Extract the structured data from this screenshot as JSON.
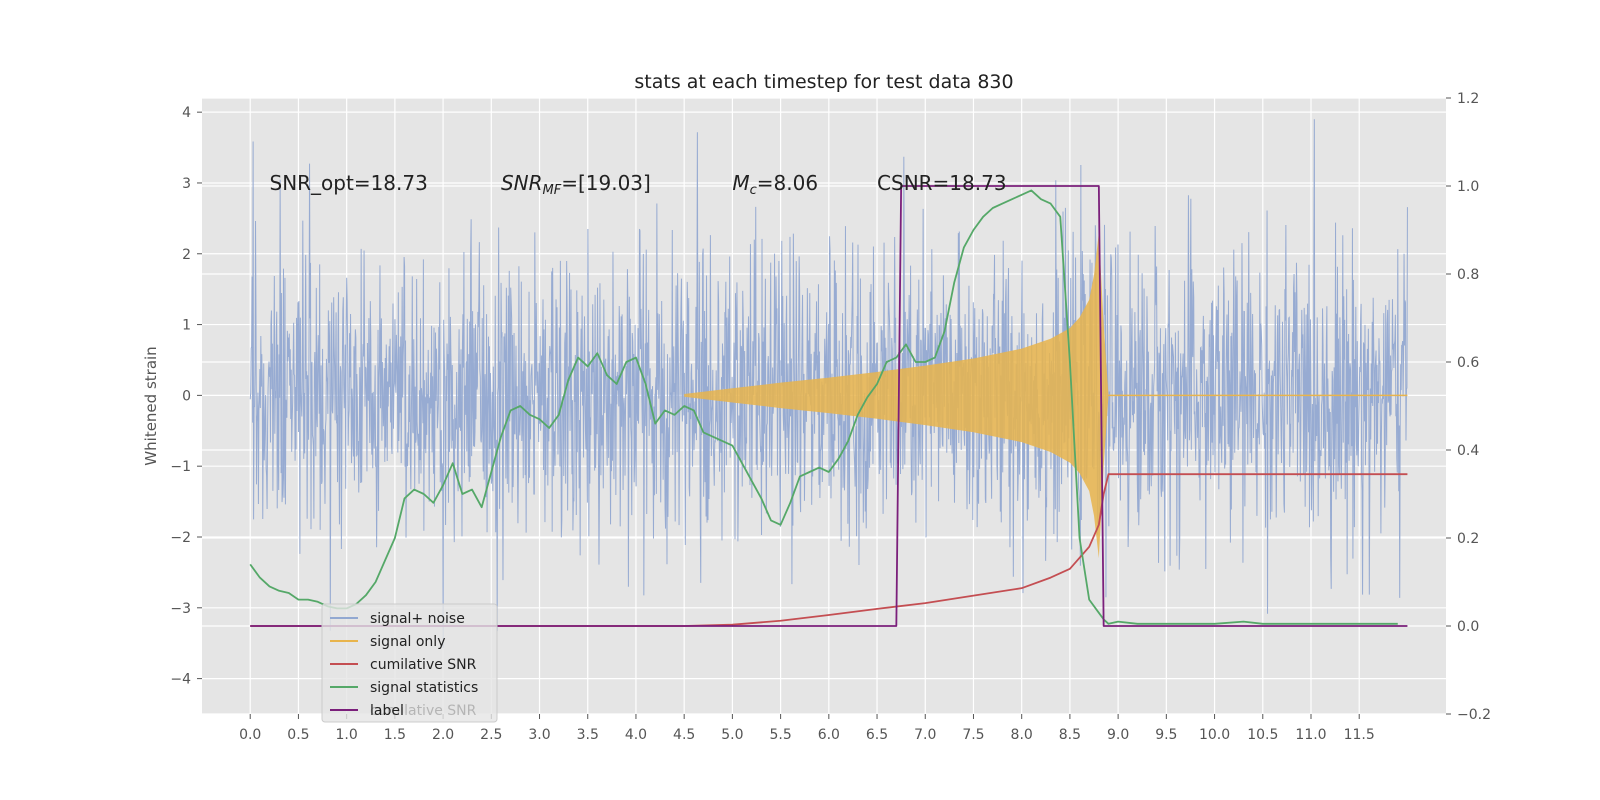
{
  "chart_data": {
    "type": "line",
    "title": "stats at each timestep for test data 830",
    "ylabel": "Whitened strain",
    "y2label": "",
    "xlim": [
      -0.5,
      12.4
    ],
    "ylim": [
      -4.5,
      4.2
    ],
    "y2lim": [
      -0.2,
      1.2
    ],
    "x_ticks": [
      "0.0",
      "0.5",
      "1.0",
      "1.5",
      "2.0",
      "2.5",
      "3.0",
      "3.5",
      "4.0",
      "4.5",
      "5.0",
      "5.5",
      "6.0",
      "6.5",
      "7.0",
      "7.5",
      "8.0",
      "8.5",
      "9.0",
      "9.5",
      "10.0",
      "10.5",
      "11.0",
      "11.5"
    ],
    "y_ticks": [
      "4",
      "3",
      "2",
      "1",
      "0",
      "−1",
      "−2",
      "−3",
      "−4"
    ],
    "y2_ticks": [
      "1.2",
      "1.0",
      "0.8",
      "0.6",
      "0.4",
      "0.2",
      "0.0",
      "−0.2"
    ],
    "grid": true,
    "legend_placement": "lower-left",
    "annotations": [
      {
        "parts": [
          {
            "t": "SNR_opt=18.73",
            "i": false
          }
        ],
        "x": 0.2,
        "y": 3.0
      },
      {
        "parts": [
          {
            "t": "SNR",
            "i": true
          },
          {
            "t": "MF",
            "i": true,
            "sub": true
          },
          {
            "t": "=[19.03]",
            "i": false
          }
        ],
        "x": 2.6,
        "y": 3.0
      },
      {
        "parts": [
          {
            "t": "M",
            "i": true
          },
          {
            "t": "c",
            "i": true,
            "sub": true
          },
          {
            "t": "=8.06",
            "i": false
          }
        ],
        "x": 5.0,
        "y": 3.0
      },
      {
        "parts": [
          {
            "t": "CSNR=18.73",
            "i": false
          }
        ],
        "x": 6.5,
        "y": 3.0
      }
    ],
    "series": [
      {
        "name": "signal+ noise",
        "color": "#92a8d1",
        "axis": "left",
        "note": "whitened noisy strain, roughly Gaussian with std ~1, spanning t 0.0 to 12.0"
      },
      {
        "name": "signal only",
        "color": "#e8b44c",
        "axis": "left",
        "envelope": {
          "x": [
            4.5,
            5.0,
            5.5,
            6.0,
            6.5,
            7.0,
            7.5,
            8.0,
            8.3,
            8.5,
            8.6,
            8.7,
            8.75,
            8.8,
            8.85,
            8.9
          ],
          "amp": [
            0.02,
            0.1,
            0.18,
            0.25,
            0.33,
            0.42,
            0.52,
            0.66,
            0.8,
            0.95,
            1.1,
            1.35,
            1.7,
            2.3,
            1.0,
            0.0
          ]
        }
      },
      {
        "name": "cumilative SNR",
        "color": "#c44e52",
        "axis": "right",
        "x": [
          0.0,
          4.5,
          5.0,
          5.5,
          6.0,
          6.5,
          7.0,
          7.5,
          8.0,
          8.3,
          8.5,
          8.7,
          8.8,
          8.85,
          8.9,
          12.0
        ],
        "values": [
          0.0,
          0.0,
          0.003,
          0.012,
          0.025,
          0.039,
          0.052,
          0.069,
          0.086,
          0.11,
          0.13,
          0.18,
          0.23,
          0.3,
          0.345,
          0.345
        ]
      },
      {
        "name": "signal statistics",
        "color": "#55a868",
        "axis": "right",
        "x": [
          0.0,
          0.1,
          0.2,
          0.3,
          0.4,
          0.5,
          0.6,
          0.7,
          0.8,
          0.9,
          1.0,
          1.1,
          1.2,
          1.3,
          1.4,
          1.5,
          1.6,
          1.7,
          1.8,
          1.9,
          2.0,
          2.1,
          2.2,
          2.3,
          2.4,
          2.5,
          2.6,
          2.7,
          2.8,
          2.9,
          3.0,
          3.1,
          3.2,
          3.3,
          3.4,
          3.5,
          3.6,
          3.7,
          3.8,
          3.9,
          4.0,
          4.1,
          4.2,
          4.3,
          4.4,
          4.5,
          4.6,
          4.7,
          4.8,
          4.9,
          5.0,
          5.1,
          5.2,
          5.3,
          5.4,
          5.5,
          5.6,
          5.7,
          5.8,
          5.9,
          6.0,
          6.1,
          6.2,
          6.3,
          6.4,
          6.5,
          6.6,
          6.7,
          6.8,
          6.9,
          7.0,
          7.1,
          7.2,
          7.3,
          7.4,
          7.5,
          7.6,
          7.7,
          7.8,
          7.9,
          8.0,
          8.1,
          8.2,
          8.3,
          8.4,
          8.5,
          8.6,
          8.7,
          8.8,
          8.85,
          8.9,
          9.0,
          9.2,
          9.5,
          9.8,
          10.0,
          10.3,
          10.5,
          11.0,
          11.5,
          11.9
        ],
        "values": [
          0.14,
          0.11,
          0.09,
          0.08,
          0.075,
          0.06,
          0.06,
          0.055,
          0.045,
          0.04,
          0.04,
          0.05,
          0.07,
          0.1,
          0.15,
          0.2,
          0.29,
          0.31,
          0.3,
          0.28,
          0.32,
          0.37,
          0.3,
          0.31,
          0.27,
          0.35,
          0.43,
          0.49,
          0.5,
          0.48,
          0.47,
          0.45,
          0.48,
          0.56,
          0.61,
          0.59,
          0.62,
          0.57,
          0.55,
          0.6,
          0.61,
          0.55,
          0.46,
          0.49,
          0.48,
          0.5,
          0.49,
          0.44,
          0.43,
          0.42,
          0.41,
          0.37,
          0.33,
          0.29,
          0.24,
          0.23,
          0.28,
          0.34,
          0.35,
          0.36,
          0.35,
          0.38,
          0.42,
          0.48,
          0.52,
          0.55,
          0.6,
          0.61,
          0.64,
          0.6,
          0.6,
          0.61,
          0.67,
          0.78,
          0.86,
          0.9,
          0.93,
          0.95,
          0.96,
          0.97,
          0.98,
          0.99,
          0.97,
          0.96,
          0.93,
          0.6,
          0.2,
          0.06,
          0.03,
          0.015,
          0.005,
          0.01,
          0.005,
          0.005,
          0.005,
          0.005,
          0.01,
          0.005,
          0.005,
          0.005,
          0.005
        ]
      },
      {
        "name": "label",
        "color": "#7b1f7b",
        "axis": "right",
        "x": [
          0.0,
          6.7,
          6.75,
          8.8,
          8.85,
          12.0
        ],
        "values": [
          0.0,
          0.0,
          1.0,
          1.0,
          0.0,
          0.0
        ]
      }
    ],
    "legend_overlap_text": "cumilative SNR"
  }
}
